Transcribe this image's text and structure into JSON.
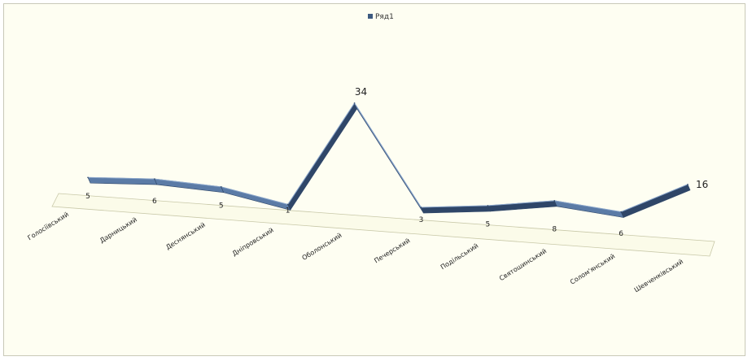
{
  "colors": {
    "background": "#fefef2",
    "line_dark": "#2f4668",
    "line_light": "#5b7ba6",
    "floor": "#fbfbe9"
  },
  "chart_data": {
    "type": "line",
    "title": "",
    "xlabel": "",
    "ylabel": "",
    "legend": {
      "position": "top",
      "entries": [
        "Ряд1"
      ]
    },
    "grid": false,
    "ylim": [
      0,
      34
    ],
    "categories": [
      "Голосіївський",
      "Дарницький",
      "Деснянський",
      "Дніпровський",
      "Оболонський",
      "Печерський",
      "Подільський",
      "Святошинський",
      "Солом'янський",
      "Шевченківський"
    ],
    "series": [
      {
        "name": "Ряд1",
        "values": [
          5,
          6,
          5,
          1,
          34,
          3,
          5,
          8,
          6,
          16
        ]
      }
    ]
  }
}
